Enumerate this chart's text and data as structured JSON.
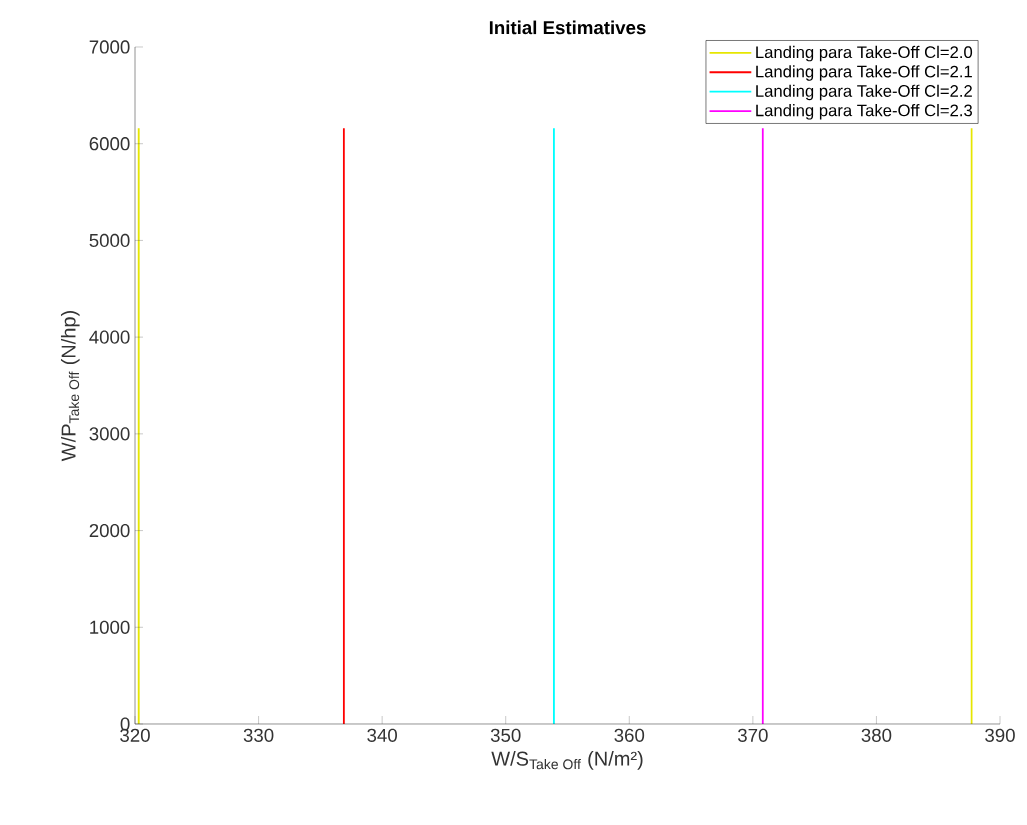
{
  "chart_data": {
    "type": "line",
    "title": "Initial Estimatives",
    "xlabel": "\\text{W/S}_{\\text{Take Off}}\\text{ (N/m²)}",
    "ylabel": "\\text{W/P}_{\\text{Take Off}}\\text{ (N/hp)}",
    "xlim": [
      320,
      390
    ],
    "xticks": [
      320,
      330,
      340,
      350,
      360,
      370,
      380,
      390
    ],
    "ylim": [
      0,
      7000
    ],
    "yticks": [
      0,
      1000,
      2000,
      3000,
      4000,
      5000,
      6000,
      7000
    ],
    "grid": false,
    "legend": "top right",
    "marker": "none",
    "line_style": "solid",
    "series": [
      {
        "name": "Landing para Take-Off Cl=2.0",
        "color": "#e6e600",
        "x": [
          320.3,
          320.3
        ],
        "values": [
          0,
          6160
        ]
      },
      {
        "name": "Landing para Take-Off Cl=2.1",
        "color": "#ff0000",
        "x": [
          336.9,
          336.9
        ],
        "values": [
          0,
          6160
        ]
      },
      {
        "name": "Landing para Take-Off Cl=2.2",
        "color": "#00ffff",
        "x": [
          353.9,
          353.9
        ],
        "values": [
          0,
          6160
        ]
      },
      {
        "name": "Landing para Take-Off Cl=2.3",
        "color": "#ff00ff",
        "x": [
          370.8,
          370.8
        ],
        "values": [
          0,
          6160
        ]
      },
      {
        "color": "#e6e600",
        "x": [
          387.7,
          387.7
        ],
        "values": [
          0,
          6160
        ]
      }
    ]
  }
}
